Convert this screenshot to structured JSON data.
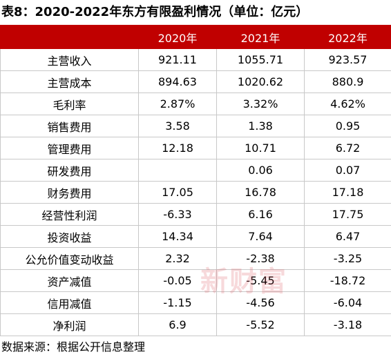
{
  "title": "表8：2020-2022年东方有限盈利情况（单位：亿元）",
  "table": {
    "header": [
      "2020年",
      "2021年",
      "2022年"
    ],
    "rows": [
      {
        "label": "主营收入",
        "cells": [
          "921.11",
          "1055.71",
          "923.57"
        ]
      },
      {
        "label": "主营成本",
        "cells": [
          "894.63",
          "1020.62",
          "880.9"
        ]
      },
      {
        "label": "毛利率",
        "cells": [
          "2.87%",
          "3.32%",
          "4.62%"
        ]
      },
      {
        "label": "销售费用",
        "cells": [
          "3.58",
          "1.38",
          "0.95"
        ]
      },
      {
        "label": "管理费用",
        "cells": [
          "12.18",
          "10.71",
          "6.72"
        ]
      },
      {
        "label": "研发费用",
        "cells": [
          null,
          "0.06",
          "0.07"
        ]
      },
      {
        "label": "财务费用",
        "cells": [
          "17.05",
          "16.78",
          "17.18"
        ]
      },
      {
        "label": "经营性利润",
        "cells": [
          "-6.33",
          "6.16",
          "17.75"
        ]
      },
      {
        "label": "投资收益",
        "cells": [
          "14.34",
          "7.64",
          "6.47"
        ]
      },
      {
        "label": "公允价值变动收益",
        "cells": [
          "2.32",
          "-2.38",
          "-3.25"
        ]
      },
      {
        "label": "资产减值",
        "cells": [
          "-0.05",
          "-5.45",
          "-18.72"
        ]
      },
      {
        "label": "信用减值",
        "cells": [
          "-1.15",
          "-4.56",
          "-6.04"
        ]
      },
      {
        "label": "净利润",
        "cells": [
          "6.9",
          "-5.52",
          "-3.18"
        ]
      }
    ]
  },
  "watermark": "新财富",
  "source": "数据来源：根据公开信息整理"
}
